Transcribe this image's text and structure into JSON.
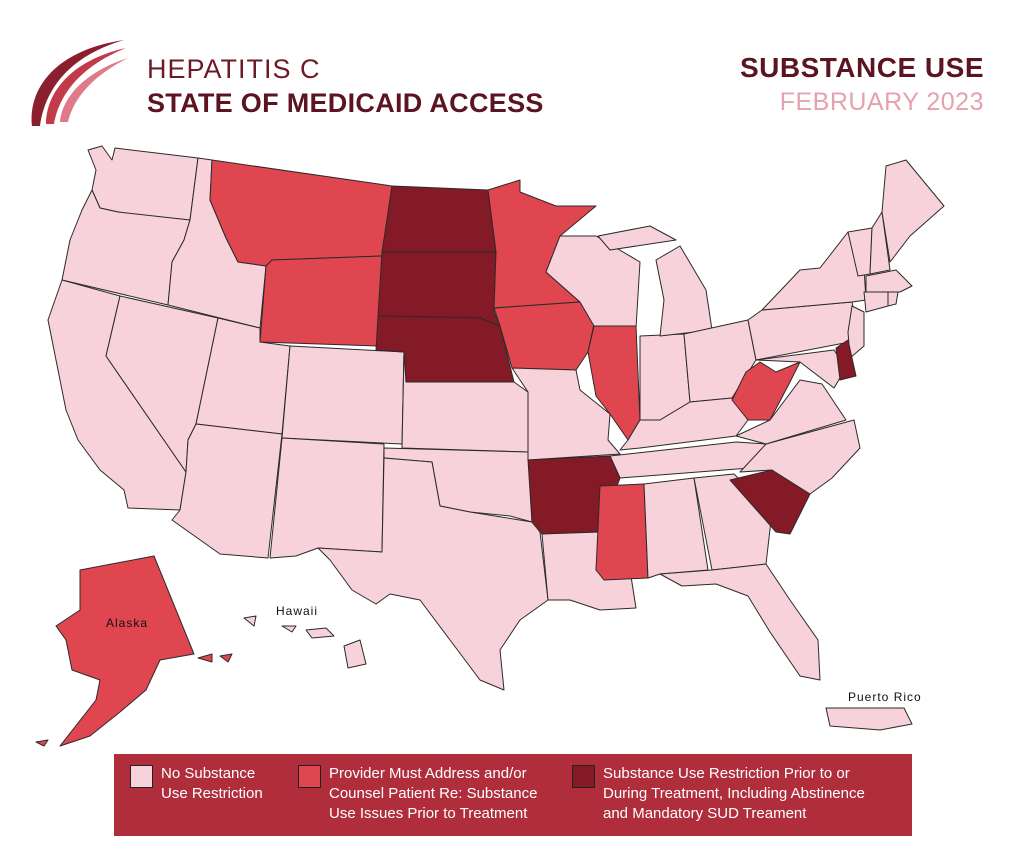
{
  "header": {
    "title_line1": "HEPATITIS C",
    "title_line2": "STATE OF MEDICAID ACCESS",
    "topic": "SUBSTANCE USE",
    "date": "FEBRUARY 2023"
  },
  "map": {
    "labels": {
      "alaska": "Alaska",
      "hawaii": "Hawaii",
      "puerto_rico": "Puerto Rico"
    },
    "categories": {
      "none": [
        "WA",
        "OR",
        "CA",
        "NV",
        "ID",
        "UT",
        "AZ",
        "CO",
        "NM",
        "TX",
        "OK",
        "KS",
        "MO",
        "LA",
        "AL",
        "GA",
        "FL",
        "TN",
        "KY",
        "IN",
        "OH",
        "MI",
        "WI",
        "PA",
        "NY",
        "VT",
        "NH",
        "ME",
        "MA",
        "RI",
        "CT",
        "NJ",
        "MD",
        "VA",
        "NC",
        "HI",
        "PR"
      ],
      "provider_must_address": [
        "MT",
        "WY",
        "MN",
        "IA",
        "IL",
        "WV",
        "MS",
        "AK"
      ],
      "restriction": [
        "ND",
        "SD",
        "NE",
        "AR",
        "SC",
        "DE"
      ]
    }
  },
  "colors": {
    "none": "#f7d2da",
    "provider": "#df4650",
    "restriction": "#851a27",
    "legend_bg": "#b02e3c",
    "heading": "#5b1420",
    "date": "#e6a0ae"
  },
  "legend": {
    "items": [
      {
        "line1": "No Substance",
        "line2": "Use Restriction",
        "line3": ""
      },
      {
        "line1": "Provider Must Address and/or",
        "line2": "Counsel Patient Re: Substance",
        "line3": "Use Issues Prior to Treatment"
      },
      {
        "line1": "Substance Use Restriction Prior to or",
        "line2": "During Treatment, Including Abstinence",
        "line3": "and Mandatory SUD Treament"
      }
    ]
  }
}
